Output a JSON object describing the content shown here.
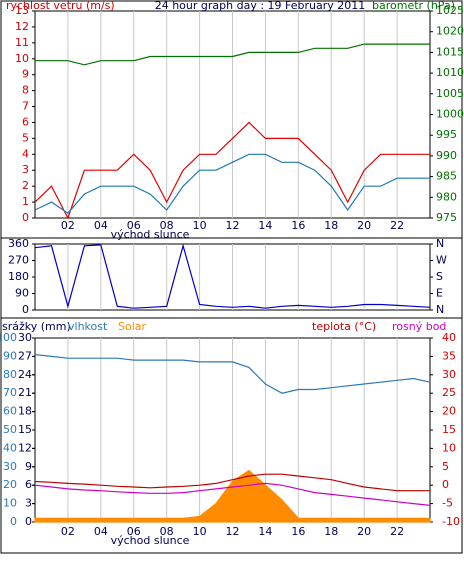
{
  "chart_data": [
    {
      "type": "line",
      "title": "24 hour graph day : 19 February 2011",
      "ylabel": "rychlost vetru (m/s)",
      "y2label": "barometr (hPa)",
      "annotation": "východ slunce",
      "xlim": [
        0,
        24
      ],
      "xticks": [
        {
          "value": 2,
          "label": "02"
        },
        {
          "value": 4,
          "label": "04"
        },
        {
          "value": 6,
          "label": "06"
        },
        {
          "value": 8,
          "label": "08"
        },
        {
          "value": 10,
          "label": "10"
        },
        {
          "value": 12,
          "label": "12"
        },
        {
          "value": 14,
          "label": "14"
        },
        {
          "value": 16,
          "label": "16"
        },
        {
          "value": 18,
          "label": "18"
        },
        {
          "value": 20,
          "label": "20"
        },
        {
          "value": 22,
          "label": "22"
        }
      ],
      "ylim": [
        0,
        13
      ],
      "yticks": [
        0,
        1,
        2,
        3,
        4,
        5,
        6,
        7,
        8,
        9,
        10,
        11,
        12,
        13
      ],
      "ytick_color": "#d40000",
      "y2lim": [
        975,
        1025
      ],
      "y2ticks": [
        975,
        980,
        985,
        990,
        995,
        1000,
        1005,
        1010,
        1015,
        1020,
        1025
      ],
      "y2tick_color": "#007000",
      "grid": true,
      "x": [
        0,
        1,
        2,
        3,
        4,
        5,
        6,
        7,
        8,
        9,
        10,
        11,
        12,
        13,
        14,
        15,
        16,
        17,
        18,
        19,
        20,
        21,
        22,
        23,
        24
      ],
      "series": [
        {
          "color": "#e00000",
          "values": [
            1,
            2,
            0,
            3,
            3,
            3,
            4,
            3,
            1,
            3,
            4,
            4,
            5,
            6,
            5,
            5,
            5,
            4,
            3,
            1,
            3,
            4,
            4,
            4,
            4
          ]
        },
        {
          "color": "#1f7ab0",
          "values": [
            0.5,
            1,
            0.3,
            1.5,
            2,
            2,
            2,
            1.5,
            0.5,
            2,
            3,
            3,
            3.5,
            4,
            4,
            3.5,
            3.5,
            3,
            2,
            0.5,
            2,
            2,
            2.5,
            2.5,
            2.5
          ]
        },
        {
          "color": "#007000",
          "axis": "y2",
          "values": [
            1013,
            1013,
            1013,
            1012,
            1013,
            1013,
            1013,
            1014,
            1014,
            1014,
            1014,
            1014,
            1014,
            1015,
            1015,
            1015,
            1015,
            1016,
            1016,
            1016,
            1017,
            1017,
            1017,
            1017,
            1017
          ]
        }
      ]
    },
    {
      "type": "line",
      "xlim": [
        0,
        24
      ],
      "ylim": [
        0,
        360
      ],
      "yticks": [
        0,
        90,
        180,
        270,
        360
      ],
      "ytick_color": "#00005a",
      "y2lim": [
        0,
        360
      ],
      "y2ticks": [
        {
          "value": 0,
          "label": "N"
        },
        {
          "value": 90,
          "label": "E"
        },
        {
          "value": 180,
          "label": "S"
        },
        {
          "value": 270,
          "label": "W"
        },
        {
          "value": 360,
          "label": "N"
        }
      ],
      "y2tick_color": "#00005a",
      "grid": true,
      "x": [
        0,
        1,
        2,
        3,
        4,
        5,
        6,
        7,
        8,
        9,
        10,
        11,
        12,
        13,
        14,
        15,
        16,
        17,
        18,
        19,
        20,
        21,
        22,
        23,
        24
      ],
      "series": [
        {
          "color": "#0000cc",
          "values": [
            340,
            350,
            20,
            350,
            355,
            20,
            10,
            15,
            20,
            350,
            30,
            20,
            15,
            20,
            10,
            20,
            25,
            20,
            15,
            20,
            30,
            30,
            25,
            20,
            15
          ]
        }
      ]
    },
    {
      "type": "line",
      "annotation": "východ slunce",
      "y2label": "srážky (mm)",
      "xlim": [
        0,
        24
      ],
      "xticks": [
        {
          "value": 2,
          "label": "02"
        },
        {
          "value": 4,
          "label": "04"
        },
        {
          "value": 6,
          "label": "06"
        },
        {
          "value": 8,
          "label": "08"
        },
        {
          "value": 10,
          "label": "10"
        },
        {
          "value": 12,
          "label": "12"
        },
        {
          "value": 14,
          "label": "14"
        },
        {
          "value": 16,
          "label": "16"
        },
        {
          "value": 18,
          "label": "18"
        },
        {
          "value": 20,
          "label": "20"
        },
        {
          "value": 22,
          "label": "22"
        }
      ],
      "ylim": [
        0,
        100
      ],
      "yticks": [
        0,
        10,
        20,
        30,
        40,
        50,
        60,
        70,
        80,
        90,
        100
      ],
      "ytick_color": "#2a7ab8",
      "y2lim": [
        0,
        30
      ],
      "y2ticks": [
        0,
        3,
        6,
        9,
        12,
        15,
        18,
        21,
        24,
        27,
        30
      ],
      "y2tick_color": "#00005a",
      "y3lim": [
        -10,
        40
      ],
      "y3ticks": [
        -10,
        -5,
        0,
        5,
        10,
        15,
        20,
        25,
        30,
        35,
        40
      ],
      "y3tick_color": "#d40000",
      "grid": true,
      "x": [
        0,
        1,
        2,
        3,
        4,
        5,
        6,
        7,
        8,
        9,
        10,
        11,
        12,
        13,
        14,
        15,
        16,
        17,
        18,
        19,
        20,
        21,
        22,
        23,
        24
      ],
      "series": [
        {
          "name": "vlhkost",
          "color": "#2a7ab8",
          "values": [
            91,
            90,
            89,
            89,
            89,
            89,
            88,
            88,
            88,
            88,
            87,
            87,
            87,
            84,
            75,
            70,
            72,
            72,
            73,
            74,
            75,
            76,
            77,
            78,
            76
          ]
        },
        {
          "name": "Solar",
          "color": "#ff8c00",
          "fill": true,
          "values": [
            2,
            2,
            2,
            2,
            2,
            2,
            2,
            2,
            2,
            2,
            3,
            10,
            22,
            28,
            20,
            12,
            2,
            2,
            2,
            2,
            2,
            2,
            2,
            2,
            2
          ]
        },
        {
          "name": "teplota (°C)",
          "color": "#c00000",
          "axis": "y3",
          "values": [
            1,
            0.8,
            0.5,
            0.3,
            0,
            -0.3,
            -0.5,
            -0.7,
            -0.5,
            -0.3,
            0,
            0.5,
            1.5,
            2.5,
            3,
            3,
            2.5,
            2,
            1.5,
            0.5,
            -0.5,
            -1,
            -1.5,
            -1.5,
            -1.5
          ]
        },
        {
          "name": "rosný bod",
          "color": "#cc00cc",
          "axis": "y3",
          "values": [
            0,
            -0.5,
            -1,
            -1.3,
            -1.5,
            -1.8,
            -2,
            -2.2,
            -2.2,
            -2,
            -1.5,
            -1,
            -0.5,
            0,
            0.5,
            0,
            -1,
            -2,
            -2.5,
            -3,
            -3.5,
            -4,
            -4.5,
            -5,
            -5.5
          ]
        }
      ]
    }
  ]
}
